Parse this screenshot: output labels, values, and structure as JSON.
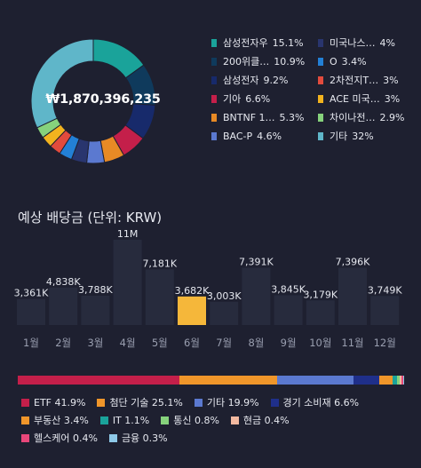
{
  "donut": {
    "total_label": "₩1,870,396,235",
    "start_color": "#5fb6c9"
  },
  "chart_data": [
    {
      "type": "pie",
      "title": "",
      "center_label": "₩1,870,396,235",
      "slices": [
        {
          "label": "삼성전자우",
          "value": 15.1,
          "color": "#1aa39a"
        },
        {
          "label": "200위클…",
          "value": 10.9,
          "color": "#0f3a5c"
        },
        {
          "label": "삼성전자",
          "value": 9.2,
          "color": "#172a6b"
        },
        {
          "label": "기아",
          "value": 6.6,
          "color": "#c41f4a"
        },
        {
          "label": "BNTNF 1…",
          "value": 5.3,
          "color": "#e88a25"
        },
        {
          "label": "BAC-P",
          "value": 4.6,
          "color": "#5b79d0"
        },
        {
          "label": "미국나스…",
          "value": 4.0,
          "color": "#29356e"
        },
        {
          "label": "O",
          "value": 3.4,
          "color": "#2380d6"
        },
        {
          "label": "2차전지T…",
          "value": 3.0,
          "color": "#e24b3d"
        },
        {
          "label": "ACE 미국…",
          "value": 3.0,
          "color": "#f2b31e"
        },
        {
          "label": "차이나전…",
          "value": 2.9,
          "color": "#86d27c"
        },
        {
          "label": "기타",
          "value": 32.0,
          "color": "#5fb6c9"
        }
      ]
    },
    {
      "type": "bar",
      "title": "예상 배당금 (단위: KRW)",
      "categories": [
        "1월",
        "2월",
        "3월",
        "4월",
        "5월",
        "6월",
        "7월",
        "8월",
        "9월",
        "10월",
        "11월",
        "12월"
      ],
      "values": [
        3361000,
        4838000,
        3788000,
        11000000,
        7181000,
        3682000,
        3003000,
        7391000,
        3845000,
        3179000,
        7396000,
        3749000
      ],
      "value_labels": [
        "3,361K",
        "4,838K",
        "3,788K",
        "11M",
        "7,181K",
        "3,682K",
        "3,003K",
        "7,391K",
        "3,845K",
        "3,179K",
        "7,396K",
        "3,749K"
      ],
      "highlight_index": 5,
      "bar_color": "#272b3d",
      "highlight_color": "#f5b73a",
      "ylim": [
        0,
        11000000
      ]
    },
    {
      "type": "bar",
      "subtype": "stacked-100",
      "series": [
        {
          "name": "ETF",
          "value": 41.9,
          "color": "#c41f4a"
        },
        {
          "name": "첨단 기술",
          "value": 25.1,
          "color": "#f0962a"
        },
        {
          "name": "기타",
          "value": 19.9,
          "color": "#5b79d0"
        },
        {
          "name": "경기 소비재",
          "value": 6.6,
          "color": "#1f2f8a"
        },
        {
          "name": "부동산",
          "value": 3.4,
          "color": "#f0962a"
        },
        {
          "name": "IT",
          "value": 1.1,
          "color": "#1aa39a"
        },
        {
          "name": "통신",
          "value": 0.8,
          "color": "#86d27c"
        },
        {
          "name": "현금",
          "value": 0.4,
          "color": "#f3b9a0"
        },
        {
          "name": "헬스케어",
          "value": 0.4,
          "color": "#e8477a"
        },
        {
          "name": "금융",
          "value": 0.3,
          "color": "#8ec9e8"
        }
      ]
    }
  ]
}
